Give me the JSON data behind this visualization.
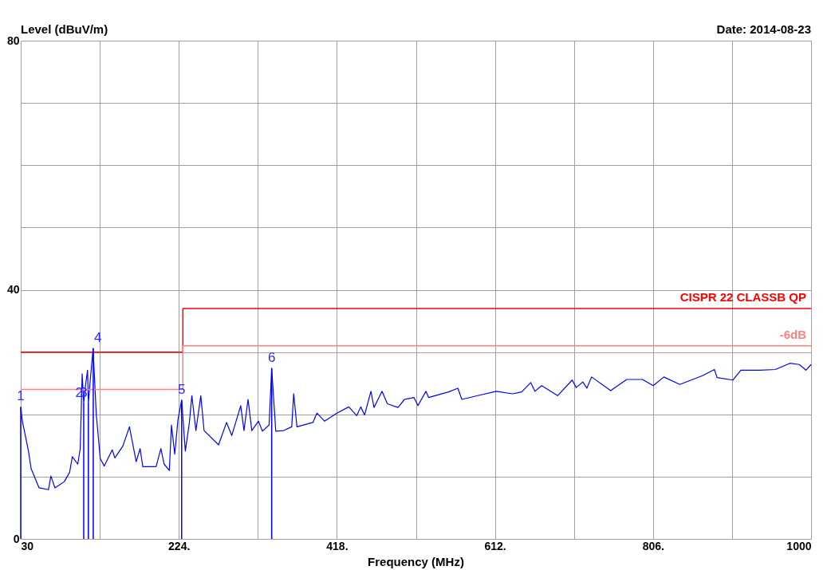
{
  "chart_data": {
    "type": "line",
    "ylabel": "Level (dBuV/m)",
    "xlabel": "Frequency (MHz)",
    "annotations": [
      "Date: 2014-08-23",
      {
        "text": "1",
        "x": 30,
        "y": 21.2
      },
      {
        "text": "2",
        "x": 107.3,
        "y": 21.8
      },
      {
        "text": "3",
        "x": 113,
        "y": 21.8
      },
      {
        "text": "4",
        "x": 119,
        "y": 30.6
      },
      {
        "text": "5",
        "x": 227.5,
        "y": 22.3
      },
      {
        "text": "6",
        "x": 338,
        "y": 27.4
      }
    ],
    "xlim": [
      30,
      1000
    ],
    "ylim": [
      0,
      80
    ],
    "xticks": [
      30,
      {
        "value": 127,
        "label": null
      },
      {
        "value": 224,
        "label": "224."
      },
      {
        "value": 321,
        "label": null
      },
      {
        "value": 418,
        "label": "418."
      },
      {
        "value": 515,
        "label": null
      },
      {
        "value": 612,
        "label": "612."
      },
      {
        "value": 709,
        "label": null
      },
      {
        "value": 806,
        "label": "806."
      },
      {
        "value": 903,
        "label": null
      },
      1000
    ],
    "yticks": [
      0,
      {
        "value": 10,
        "label": null
      },
      {
        "value": 20,
        "label": null
      },
      {
        "value": 30,
        "label": null
      },
      40,
      {
        "value": 50,
        "label": null
      },
      {
        "value": 60,
        "label": null
      },
      {
        "value": 70,
        "label": null
      },
      80
    ],
    "grid": true,
    "legend": false,
    "marker": "none",
    "line_style": "solid",
    "series": [
      {
        "color": "#0000ff",
        "x": [
          30,
          32,
          39.5,
          42.7,
          52.5,
          64,
          67,
          72,
          83.5,
          90,
          93.3,
          100,
          103,
          105.4,
          107.3,
          108.6,
          112,
          113,
          115,
          118.8,
          122.7,
          127.6,
          132.5,
          142.3,
          145.5,
          155.3,
          163.4,
          171.7,
          176.5,
          179.8,
          196.1,
          202,
          206,
          212.4,
          215,
          219,
          223,
          227.5,
          232,
          237,
          240,
          245,
          251,
          255,
          272.8,
          282.6,
          289,
          300,
          304,
          309,
          313.6,
          321.7,
          326.6,
          334.8,
          338,
          343,
          352.8,
          362.6,
          365,
          369,
          388.6,
          393.5,
          403,
          418,
          432.6,
          442.4,
          447.3,
          452,
          459.8,
          463.6,
          473.4,
          480,
          493,
          501,
          512.6,
          517.5,
          527.3,
          530.6,
          555,
          566.5,
          571.4,
          594,
          613.7,
          633.3,
          644.8,
          656,
          661,
          669.3,
          688.9,
          706.8,
          711.7,
          719.9,
          724.8,
          730.6,
          754,
          773.7,
          793,
          806.3,
          819.3,
          838.9,
          866.7,
          881.4,
          884.6,
          904,
          913.8,
          936.7,
          956.2,
          974,
          985.5,
          993.7,
          1000
        ],
        "values": [
          21.2,
          18.9,
          14.1,
          11.3,
          8.2,
          7.9,
          10.1,
          8.2,
          9.2,
          10.7,
          13.2,
          12,
          14.5,
          26.5,
          21.8,
          23.7,
          27.1,
          21.8,
          25,
          30.6,
          20,
          12.9,
          11.7,
          14.3,
          13,
          14.9,
          18,
          12.4,
          14.5,
          11.6,
          11.6,
          14.5,
          12,
          11,
          18.3,
          13.6,
          19.2,
          22.3,
          14.1,
          18.7,
          23,
          17.4,
          23,
          17.4,
          15.1,
          18.7,
          16.6,
          21.4,
          17.4,
          22.4,
          17.4,
          18.9,
          17.3,
          18.3,
          27.4,
          17.3,
          17.4,
          18,
          23.3,
          18,
          18.7,
          20.2,
          18.9,
          20.2,
          21.2,
          19.8,
          21.2,
          19.9,
          23.7,
          21.1,
          23.7,
          21.7,
          21.1,
          22.4,
          22.7,
          21.4,
          23.7,
          22.7,
          23.6,
          24.2,
          22.4,
          23.1,
          23.7,
          23.3,
          23.6,
          25.1,
          23.7,
          24.6,
          23,
          25.5,
          24.3,
          25.2,
          24.2,
          26,
          23.8,
          25.6,
          25.6,
          24.6,
          26,
          24.8,
          26.2,
          27.2,
          25.9,
          25.5,
          27.1,
          27.1,
          27.2,
          28.2,
          28,
          27.1,
          28
        ]
      },
      {
        "name": "CISPR 22 CLASSB QP",
        "color": "#ff0000",
        "x": [
          30,
          229,
          229,
          1000
        ],
        "values": [
          30,
          30,
          37,
          37
        ]
      },
      {
        "name": "-6dB",
        "color": "#ff8080",
        "x": [
          30,
          229,
          229,
          1000
        ],
        "values": [
          24,
          24,
          31,
          31
        ]
      }
    ]
  }
}
